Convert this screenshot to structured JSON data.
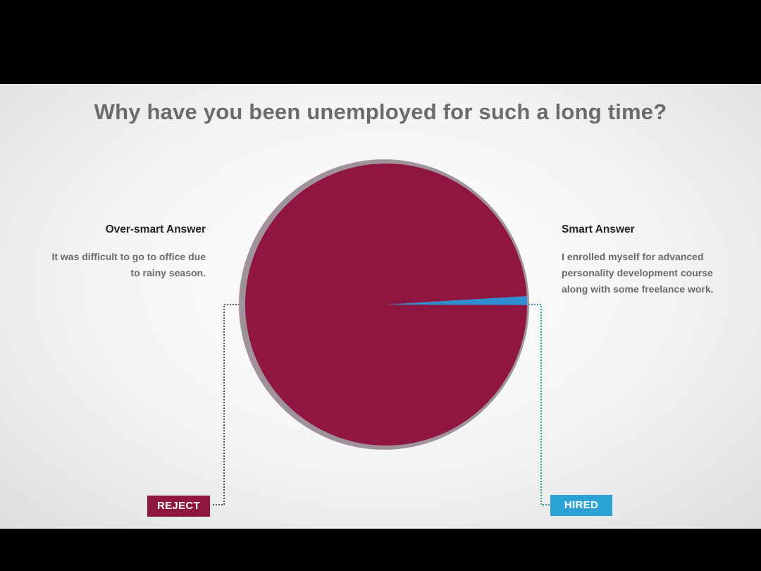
{
  "chart_data": {
    "type": "pie",
    "title": "Why have you been unemployed for such a long time?",
    "slices": [
      {
        "label": "REJECT",
        "value": 99,
        "color": "#8e1641",
        "heading": "Over-smart Answer",
        "description": [
          "It  was difficult to go to office due",
          "to rainy season."
        ]
      },
      {
        "label": "HIRED",
        "value": 1,
        "color": "#2f8fd0",
        "heading": "Smart Answer",
        "description": [
          "I enrolled myself for advanced",
          "personality development course",
          "along with some freelance work."
        ]
      }
    ],
    "legend": "none"
  }
}
